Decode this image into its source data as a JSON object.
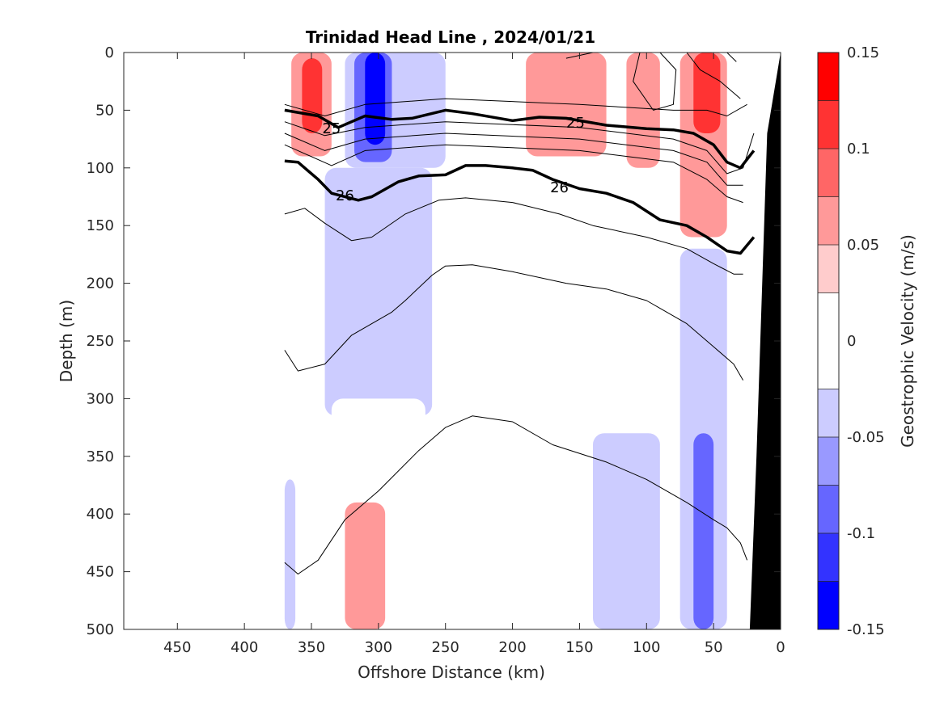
{
  "chart_data": {
    "type": "heatmap",
    "title": "Trinidad Head Line , 2024/01/21",
    "xlabel": "Offshore Distance (km)",
    "ylabel": "Depth (m)",
    "xlim": [
      490,
      0
    ],
    "ylim": [
      0,
      500
    ],
    "x_reversed": true,
    "y_reversed": true,
    "xticks": [
      "450",
      "400",
      "350",
      "300",
      "250",
      "200",
      "150",
      "100",
      "50",
      "0"
    ],
    "yticks": [
      "0",
      "50",
      "100",
      "150",
      "200",
      "250",
      "300",
      "350",
      "400",
      "450",
      "500"
    ],
    "colorbar": {
      "label": "Geostrophic Velocity (m/s)",
      "range": [
        -0.15,
        0.15
      ],
      "tick_labels": [
        "0.15",
        "0.1",
        "0.05",
        "0",
        "-0.05",
        "-0.1",
        "-0.15"
      ],
      "levels": [
        -0.15,
        -0.125,
        -0.1,
        -0.075,
        -0.05,
        -0.025,
        0.025,
        0.05,
        0.075,
        0.1,
        0.125,
        0.15
      ],
      "colors_low_to_high": [
        "#0000ff",
        "#3333ff",
        "#6666ff",
        "#9999ff",
        "#ccccff",
        "#ffffff",
        "#ffcccc",
        "#ff9999",
        "#ff6666",
        "#ff3333",
        "#ff0000"
      ]
    },
    "velocity_regions": [
      {
        "value": 0.125,
        "x_range": [
          357,
          342
        ],
        "depth_range": [
          5,
          70
        ]
      },
      {
        "value": 0.075,
        "x_range": [
          365,
          335
        ],
        "depth_range": [
          0,
          90
        ]
      },
      {
        "value": 0.025,
        "x_range": [
          370,
          320
        ],
        "depth_range": [
          0,
          95
        ]
      },
      {
        "value": -0.125,
        "x_range": [
          310,
          295
        ],
        "depth_range": [
          0,
          80
        ]
      },
      {
        "value": -0.075,
        "x_range": [
          318,
          290
        ],
        "depth_range": [
          0,
          95
        ]
      },
      {
        "value": -0.025,
        "x_range": [
          325,
          250
        ],
        "depth_range": [
          0,
          100
        ]
      },
      {
        "value": -0.025,
        "x_range": [
          340,
          260
        ],
        "depth_range": [
          100,
          315
        ]
      },
      {
        "value": 0.025,
        "x_range": [
          370,
          366
        ],
        "depth_range": [
          100,
          240
        ]
      },
      {
        "value": 0.025,
        "x_range": [
          210,
          80
        ],
        "depth_range": [
          0,
          160
        ]
      },
      {
        "value": 0.075,
        "x_range": [
          190,
          130
        ],
        "depth_range": [
          0,
          90
        ]
      },
      {
        "value": 0.075,
        "x_range": [
          115,
          90
        ],
        "depth_range": [
          0,
          100
        ]
      },
      {
        "value": 0.125,
        "x_range": [
          65,
          45
        ],
        "depth_range": [
          0,
          70
        ]
      },
      {
        "value": 0.075,
        "x_range": [
          75,
          40
        ],
        "depth_range": [
          0,
          160
        ]
      },
      {
        "value": 0.025,
        "x_range": [
          36,
          30
        ],
        "depth_range": [
          120,
          180
        ]
      },
      {
        "value": -0.025,
        "x_range": [
          140,
          90
        ],
        "depth_range": [
          330,
          500
        ]
      },
      {
        "value": -0.025,
        "x_range": [
          75,
          40
        ],
        "depth_range": [
          170,
          500
        ]
      },
      {
        "value": -0.075,
        "x_range": [
          65,
          50
        ],
        "depth_range": [
          330,
          500
        ]
      },
      {
        "value": 0.025,
        "x_range": [
          335,
          265
        ],
        "depth_range": [
          300,
          500
        ]
      },
      {
        "value": 0.075,
        "x_range": [
          325,
          295
        ],
        "depth_range": [
          390,
          500
        ]
      },
      {
        "value": -0.025,
        "x_range": [
          370,
          362
        ],
        "depth_range": [
          370,
          500
        ]
      }
    ],
    "density_contours": [
      {
        "label": "",
        "bold": false,
        "points": [
          [
            70,
            0
          ],
          [
            60,
            15
          ],
          [
            45,
            25
          ],
          [
            35,
            35
          ],
          [
            30,
            40
          ]
        ]
      },
      {
        "label": "",
        "bold": false,
        "points": [
          [
            160,
            5
          ],
          [
            140,
            0
          ]
        ]
      },
      {
        "label": "",
        "bold": false,
        "points": [
          [
            105,
            0
          ],
          [
            110,
            25
          ],
          [
            95,
            50
          ],
          [
            80,
            45
          ],
          [
            78,
            15
          ],
          [
            90,
            0
          ]
        ]
      },
      {
        "label": "",
        "bold": false,
        "points": [
          [
            40,
            0
          ],
          [
            33,
            8
          ]
        ]
      },
      {
        "label": "",
        "bold": false,
        "points": [
          [
            370,
            45
          ],
          [
            340,
            55
          ],
          [
            310,
            45
          ],
          [
            250,
            40
          ],
          [
            150,
            45
          ],
          [
            80,
            50
          ],
          [
            55,
            50
          ],
          [
            40,
            55
          ],
          [
            25,
            45
          ]
        ]
      },
      {
        "label": "25",
        "bold": true,
        "points": [
          [
            370,
            50
          ],
          [
            345,
            55
          ],
          [
            330,
            65
          ],
          [
            310,
            55
          ],
          [
            290,
            58
          ],
          [
            275,
            57
          ],
          [
            250,
            50
          ],
          [
            230,
            53
          ],
          [
            200,
            59
          ],
          [
            180,
            56
          ],
          [
            160,
            57
          ],
          [
            130,
            63
          ],
          [
            100,
            66
          ],
          [
            80,
            67
          ],
          [
            65,
            70
          ],
          [
            50,
            80
          ],
          [
            40,
            95
          ],
          [
            30,
            100
          ],
          [
            20,
            85
          ]
        ]
      },
      {
        "label": "",
        "bold": false,
        "points": [
          [
            370,
            60
          ],
          [
            340,
            72
          ],
          [
            310,
            65
          ],
          [
            250,
            60
          ],
          [
            150,
            65
          ],
          [
            80,
            75
          ],
          [
            55,
            85
          ],
          [
            40,
            105
          ],
          [
            28,
            100
          ],
          [
            20,
            70
          ]
        ]
      },
      {
        "label": "",
        "bold": false,
        "points": [
          [
            370,
            70
          ],
          [
            340,
            85
          ],
          [
            310,
            75
          ],
          [
            250,
            70
          ],
          [
            150,
            75
          ],
          [
            80,
            85
          ],
          [
            55,
            95
          ],
          [
            40,
            115
          ],
          [
            28,
            115
          ]
        ]
      },
      {
        "label": "",
        "bold": false,
        "points": [
          [
            370,
            80
          ],
          [
            335,
            98
          ],
          [
            310,
            85
          ],
          [
            250,
            80
          ],
          [
            150,
            85
          ],
          [
            80,
            95
          ],
          [
            55,
            110
          ],
          [
            40,
            125
          ],
          [
            28,
            130
          ]
        ]
      },
      {
        "label": "26",
        "bold": true,
        "points": [
          [
            370,
            94
          ],
          [
            360,
            95
          ],
          [
            345,
            110
          ],
          [
            335,
            122
          ],
          [
            315,
            128
          ],
          [
            305,
            125
          ],
          [
            285,
            112
          ],
          [
            270,
            107
          ],
          [
            250,
            106
          ],
          [
            235,
            98
          ],
          [
            220,
            98
          ],
          [
            200,
            100
          ],
          [
            185,
            102
          ],
          [
            170,
            110
          ],
          [
            150,
            118
          ],
          [
            130,
            122
          ],
          [
            110,
            130
          ],
          [
            90,
            145
          ],
          [
            70,
            150
          ],
          [
            55,
            160
          ],
          [
            40,
            172
          ],
          [
            30,
            174
          ],
          [
            20,
            160
          ]
        ]
      },
      {
        "label": "",
        "bold": false,
        "points": [
          [
            370,
            140
          ],
          [
            355,
            135
          ],
          [
            340,
            148
          ],
          [
            320,
            163
          ],
          [
            305,
            160
          ],
          [
            280,
            140
          ],
          [
            255,
            128
          ],
          [
            235,
            126
          ],
          [
            200,
            130
          ],
          [
            165,
            140
          ],
          [
            140,
            150
          ],
          [
            100,
            160
          ],
          [
            70,
            170
          ],
          [
            50,
            183
          ],
          [
            35,
            192
          ],
          [
            28,
            192
          ]
        ]
      },
      {
        "label": "",
        "bold": false,
        "points": [
          [
            370,
            258
          ],
          [
            360,
            276
          ],
          [
            340,
            270
          ],
          [
            320,
            245
          ],
          [
            290,
            225
          ],
          [
            280,
            215
          ],
          [
            260,
            193
          ],
          [
            250,
            185
          ],
          [
            230,
            184
          ],
          [
            200,
            190
          ],
          [
            160,
            200
          ],
          [
            130,
            205
          ],
          [
            100,
            215
          ],
          [
            70,
            235
          ],
          [
            50,
            255
          ],
          [
            35,
            270
          ],
          [
            28,
            284
          ]
        ]
      },
      {
        "label": "",
        "bold": false,
        "points": [
          [
            370,
            442
          ],
          [
            360,
            452
          ],
          [
            345,
            440
          ],
          [
            325,
            405
          ],
          [
            300,
            380
          ],
          [
            270,
            345
          ],
          [
            250,
            325
          ],
          [
            230,
            315
          ],
          [
            200,
            320
          ],
          [
            170,
            340
          ],
          [
            130,
            355
          ],
          [
            100,
            370
          ],
          [
            70,
            390
          ],
          [
            50,
            405
          ],
          [
            40,
            412
          ],
          [
            30,
            425
          ],
          [
            25,
            440
          ]
        ]
      }
    ],
    "labels": [
      {
        "text": "25",
        "x": 335,
        "depth": 66
      },
      {
        "text": "25",
        "x": 153,
        "depth": 61
      },
      {
        "text": "26",
        "x": 325,
        "depth": 124
      },
      {
        "text": "26",
        "x": 165,
        "depth": 117
      }
    ],
    "bathymetry": [
      [
        0,
        0
      ],
      [
        10,
        70
      ],
      [
        18,
        350
      ],
      [
        23,
        500
      ],
      [
        0,
        500
      ]
    ]
  }
}
